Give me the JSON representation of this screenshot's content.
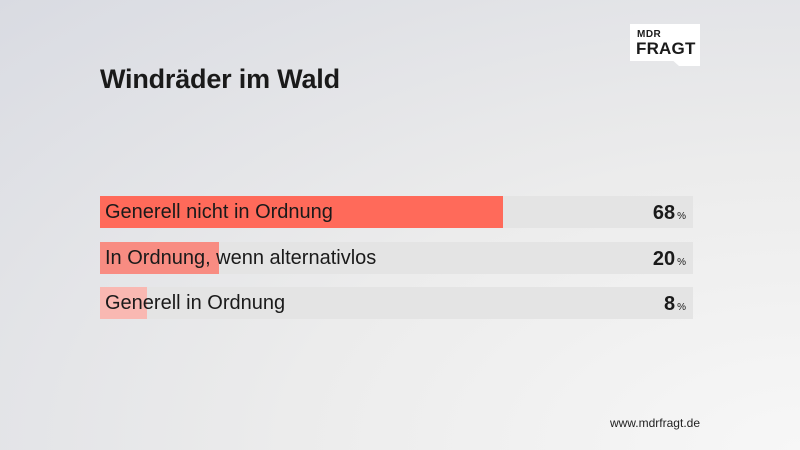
{
  "logo": {
    "line1": "MDR",
    "line2": "FRAGT"
  },
  "footer": "www.mdrfragt.de",
  "chart_data": {
    "type": "bar",
    "orientation": "horizontal",
    "title": "Windräder im Wald",
    "unit": "%",
    "xlim": [
      0,
      100
    ],
    "categories": [
      "Generell nicht in Ordnung",
      "In Ordnung, wenn alternativlos",
      "Generell in Ordnung"
    ],
    "values": [
      68,
      20,
      8
    ],
    "colors": [
      "#ff6a5a",
      "#f88c82",
      "#f9b8b2"
    ],
    "track_color": "#e4e4e4"
  }
}
